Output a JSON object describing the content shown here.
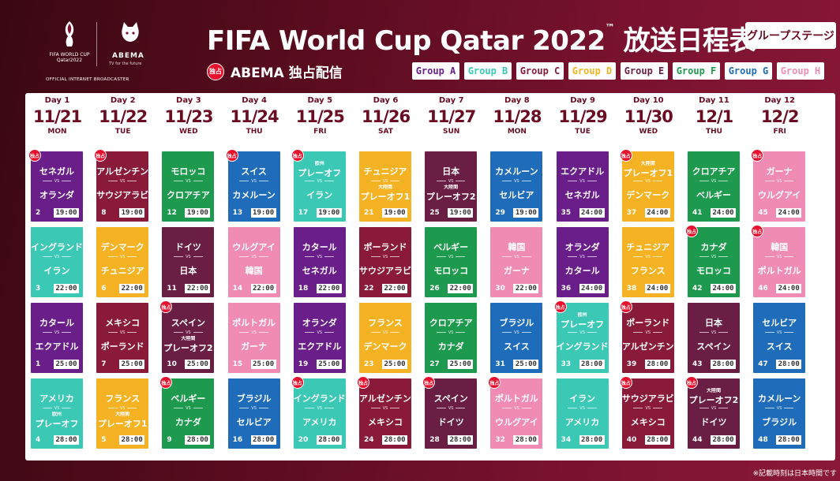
{
  "header": {
    "title": "FIFA World Cup Qatar 2022",
    "title_tm": "™",
    "title_jp": "放送日程表",
    "stage_badge": "グループステージ",
    "exclusive_badge": "独占",
    "exclusive_text": "ABEMA 独占配信",
    "fifa_lockup": "FIFA WORLD CUP Qatar2022",
    "abema_logo": "ABEMA",
    "abema_tagline": "TV for the future",
    "broadcaster": "OFFICIAL INTERNET BROADCASTER"
  },
  "groups": [
    {
      "label": "Group A",
      "color": "#6a1e8a"
    },
    {
      "label": "Group B",
      "color": "#3bc8b4"
    },
    {
      "label": "Group C",
      "color": "#8a1a3a"
    },
    {
      "label": "Group D",
      "color": "#f5b324"
    },
    {
      "label": "Group E",
      "color": "#6a1e44"
    },
    {
      "label": "Group F",
      "color": "#1e9a4e"
    },
    {
      "label": "Group G",
      "color": "#1f6cba"
    },
    {
      "label": "Group H",
      "color": "#f08cb4"
    }
  ],
  "days": [
    {
      "day": "Day 1",
      "date": "11/21",
      "weekday": "MON"
    },
    {
      "day": "Day 2",
      "date": "11/22",
      "weekday": "TUE"
    },
    {
      "day": "Day 3",
      "date": "11/23",
      "weekday": "WED"
    },
    {
      "day": "Day 4",
      "date": "11/24",
      "weekday": "THU"
    },
    {
      "day": "Day 5",
      "date": "11/25",
      "weekday": "FRI"
    },
    {
      "day": "Day 6",
      "date": "11/26",
      "weekday": "SAT"
    },
    {
      "day": "Day 7",
      "date": "11/27",
      "weekday": "SUN"
    },
    {
      "day": "Day 8",
      "date": "11/28",
      "weekday": "MON"
    },
    {
      "day": "Day 9",
      "date": "11/29",
      "weekday": "TUE"
    },
    {
      "day": "Day 10",
      "date": "11/30",
      "weekday": "WED"
    },
    {
      "day": "Day 11",
      "date": "12/1",
      "weekday": "THU"
    },
    {
      "day": "Day 12",
      "date": "12/2",
      "weekday": "FRI"
    }
  ],
  "matches": [
    [
      {
        "team1": "セネガル",
        "team2": "オランダ",
        "no": "2",
        "time": "19:00",
        "group": "A",
        "exclusive": true
      },
      {
        "team1": "イングランド",
        "team2": "イラン",
        "no": "3",
        "time": "22:00",
        "group": "B",
        "exclusive": false
      },
      {
        "team1": "カタール",
        "team2": "エクアドル",
        "no": "1",
        "time": "25:00",
        "group": "A",
        "exclusive": false
      },
      {
        "team1": "アメリカ",
        "sub2": "欧州",
        "team2": "プレーオフ",
        "no": "4",
        "time": "28:00",
        "group": "B",
        "exclusive": false
      }
    ],
    [
      {
        "team1": "アルゼンチン",
        "team2": "サウジアラビア",
        "no": "8",
        "time": "19:00",
        "group": "C",
        "exclusive": true
      },
      {
        "team1": "デンマーク",
        "team2": "チュニジア",
        "no": "6",
        "time": "22:00",
        "group": "D",
        "exclusive": false
      },
      {
        "team1": "メキシコ",
        "team2": "ポーランド",
        "no": "7",
        "time": "25:00",
        "group": "C",
        "exclusive": false
      },
      {
        "team1": "フランス",
        "sub2": "大陸間",
        "team2": "プレーオフ1",
        "no": "5",
        "time": "28:00",
        "group": "D",
        "exclusive": false
      }
    ],
    [
      {
        "team1": "モロッコ",
        "team2": "クロアチア",
        "no": "12",
        "time": "19:00",
        "group": "F",
        "exclusive": false
      },
      {
        "team1": "ドイツ",
        "team2": "日本",
        "no": "11",
        "time": "22:00",
        "group": "E",
        "exclusive": false
      },
      {
        "team1": "スペイン",
        "sub2": "大陸間",
        "team2": "プレーオフ2",
        "no": "10",
        "time": "25:00",
        "group": "E",
        "exclusive": true
      },
      {
        "team1": "ベルギー",
        "team2": "カナダ",
        "no": "9",
        "time": "28:00",
        "group": "F",
        "exclusive": true
      }
    ],
    [
      {
        "team1": "スイス",
        "team2": "カメルーン",
        "no": "13",
        "time": "19:00",
        "group": "G",
        "exclusive": true
      },
      {
        "team1": "ウルグアイ",
        "team2": "韓国",
        "no": "14",
        "time": "22:00",
        "group": "H",
        "exclusive": false
      },
      {
        "team1": "ポルトガル",
        "team2": "ガーナ",
        "no": "15",
        "time": "25:00",
        "group": "H",
        "exclusive": false
      },
      {
        "team1": "ブラジル",
        "team2": "セルビア",
        "no": "16",
        "time": "28:00",
        "group": "G",
        "exclusive": false
      }
    ],
    [
      {
        "sub1": "欧州",
        "team1": "プレーオフ",
        "team2": "イラン",
        "no": "17",
        "time": "19:00",
        "group": "B",
        "exclusive": true
      },
      {
        "team1": "カタール",
        "team2": "セネガル",
        "no": "18",
        "time": "22:00",
        "group": "A",
        "exclusive": false
      },
      {
        "team1": "オランダ",
        "team2": "エクアドル",
        "no": "19",
        "time": "25:00",
        "group": "A",
        "exclusive": false
      },
      {
        "team1": "イングランド",
        "team2": "アメリカ",
        "no": "20",
        "time": "28:00",
        "group": "B",
        "exclusive": true
      }
    ],
    [
      {
        "team1": "チュニジア",
        "sub2": "大陸間",
        "team2": "プレーオフ1",
        "no": "21",
        "time": "19:00",
        "group": "D",
        "exclusive": false
      },
      {
        "team1": "ポーランド",
        "team2": "サウジアラビア",
        "no": "22",
        "time": "22:00",
        "group": "C",
        "exclusive": false
      },
      {
        "team1": "フランス",
        "team2": "デンマーク",
        "no": "23",
        "time": "25:00",
        "group": "D",
        "exclusive": false
      },
      {
        "team1": "アルゼンチン",
        "team2": "メキシコ",
        "no": "24",
        "time": "28:00",
        "group": "C",
        "exclusive": true
      }
    ],
    [
      {
        "team1": "日本",
        "sub2": "大陸間",
        "team2": "プレーオフ2",
        "no": "25",
        "time": "19:00",
        "group": "E",
        "exclusive": false
      },
      {
        "team1": "ベルギー",
        "team2": "モロッコ",
        "no": "26",
        "time": "22:00",
        "group": "F",
        "exclusive": false
      },
      {
        "team1": "クロアチア",
        "team2": "カナダ",
        "no": "27",
        "time": "25:00",
        "group": "F",
        "exclusive": false
      },
      {
        "team1": "スペイン",
        "team2": "ドイツ",
        "no": "28",
        "time": "28:00",
        "group": "E",
        "exclusive": true
      }
    ],
    [
      {
        "team1": "カメルーン",
        "team2": "セルビア",
        "no": "29",
        "time": "19:00",
        "group": "G",
        "exclusive": false
      },
      {
        "team1": "韓国",
        "team2": "ガーナ",
        "no": "30",
        "time": "22:00",
        "group": "H",
        "exclusive": false
      },
      {
        "team1": "ブラジル",
        "team2": "スイス",
        "no": "31",
        "time": "25:00",
        "group": "G",
        "exclusive": false
      },
      {
        "team1": "ポルトガル",
        "team2": "ウルグアイ",
        "no": "32",
        "time": "28:00",
        "group": "H",
        "exclusive": true
      }
    ],
    [
      {
        "team1": "エクアドル",
        "team2": "セネガル",
        "no": "35",
        "time": "24:00",
        "group": "A",
        "exclusive": false
      },
      {
        "team1": "オランダ",
        "team2": "カタール",
        "no": "36",
        "time": "24:00",
        "group": "A",
        "exclusive": false
      },
      {
        "sub1": "欧州",
        "team1": "プレーオフ",
        "team2": "イングランド",
        "no": "33",
        "time": "28:00",
        "group": "B",
        "exclusive": true
      },
      {
        "team1": "イラン",
        "team2": "アメリカ",
        "no": "34",
        "time": "28:00",
        "group": "B",
        "exclusive": false
      }
    ],
    [
      {
        "sub1": "大陸間",
        "team1": "プレーオフ1",
        "team2": "デンマーク",
        "no": "37",
        "time": "24:00",
        "group": "D",
        "exclusive": true
      },
      {
        "team1": "チュニジア",
        "team2": "フランス",
        "no": "38",
        "time": "24:00",
        "group": "D",
        "exclusive": false
      },
      {
        "team1": "ポーランド",
        "team2": "アルゼンチン",
        "no": "39",
        "time": "28:00",
        "group": "C",
        "exclusive": true
      },
      {
        "team1": "サウジアラビア",
        "team2": "メキシコ",
        "no": "40",
        "time": "28:00",
        "group": "C",
        "exclusive": true
      }
    ],
    [
      {
        "team1": "クロアチア",
        "team2": "ベルギー",
        "no": "41",
        "time": "24:00",
        "group": "F",
        "exclusive": false
      },
      {
        "team1": "カナダ",
        "team2": "モロッコ",
        "no": "42",
        "time": "24:00",
        "group": "F",
        "exclusive": true
      },
      {
        "team1": "日本",
        "team2": "スペイン",
        "no": "43",
        "time": "28:00",
        "group": "E",
        "exclusive": false
      },
      {
        "sub1": "大陸間",
        "team1": "プレーオフ2",
        "team2": "ドイツ",
        "no": "44",
        "time": "28:00",
        "group": "E",
        "exclusive": true
      }
    ],
    [
      {
        "team1": "ガーナ",
        "team2": "ウルグアイ",
        "no": "45",
        "time": "24:00",
        "group": "H",
        "exclusive": true
      },
      {
        "team1": "韓国",
        "team2": "ポルトガル",
        "no": "46",
        "time": "24:00",
        "group": "H",
        "exclusive": true
      },
      {
        "team1": "セルビア",
        "team2": "スイス",
        "no": "47",
        "time": "28:00",
        "group": "G",
        "exclusive": false
      },
      {
        "team1": "カメルーン",
        "team2": "ブラジル",
        "no": "48",
        "time": "28:00",
        "group": "G",
        "exclusive": false
      }
    ]
  ],
  "vs_label": "VS",
  "footnote": "※記載時刻は日本時間です"
}
